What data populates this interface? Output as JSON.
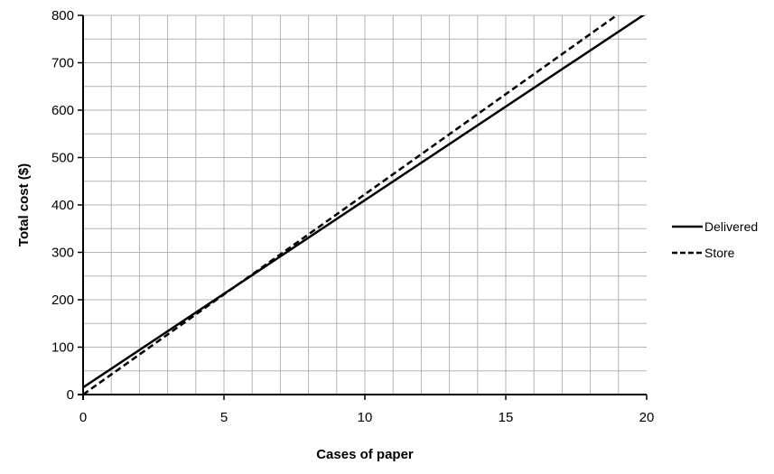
{
  "chart_data": {
    "type": "line",
    "xlabel": "Cases of paper",
    "ylabel": "Total cost ($)",
    "xlim": [
      0,
      20
    ],
    "ylim": [
      0,
      800
    ],
    "x_ticks": [
      0,
      5,
      10,
      15,
      20
    ],
    "y_ticks": [
      0,
      100,
      200,
      300,
      400,
      500,
      600,
      700,
      800
    ],
    "x_minor_step": 1,
    "y_minor_step": 50,
    "grid": true,
    "legend_position": "right",
    "series": [
      {
        "name": "Delivered",
        "style": "solid",
        "color": "#000000",
        "x": [
          0,
          20
        ],
        "y": [
          15,
          805
        ]
      },
      {
        "name": "Store",
        "style": "dashed",
        "color": "#000000",
        "x": [
          0,
          20
        ],
        "y": [
          0,
          845
        ]
      }
    ]
  }
}
